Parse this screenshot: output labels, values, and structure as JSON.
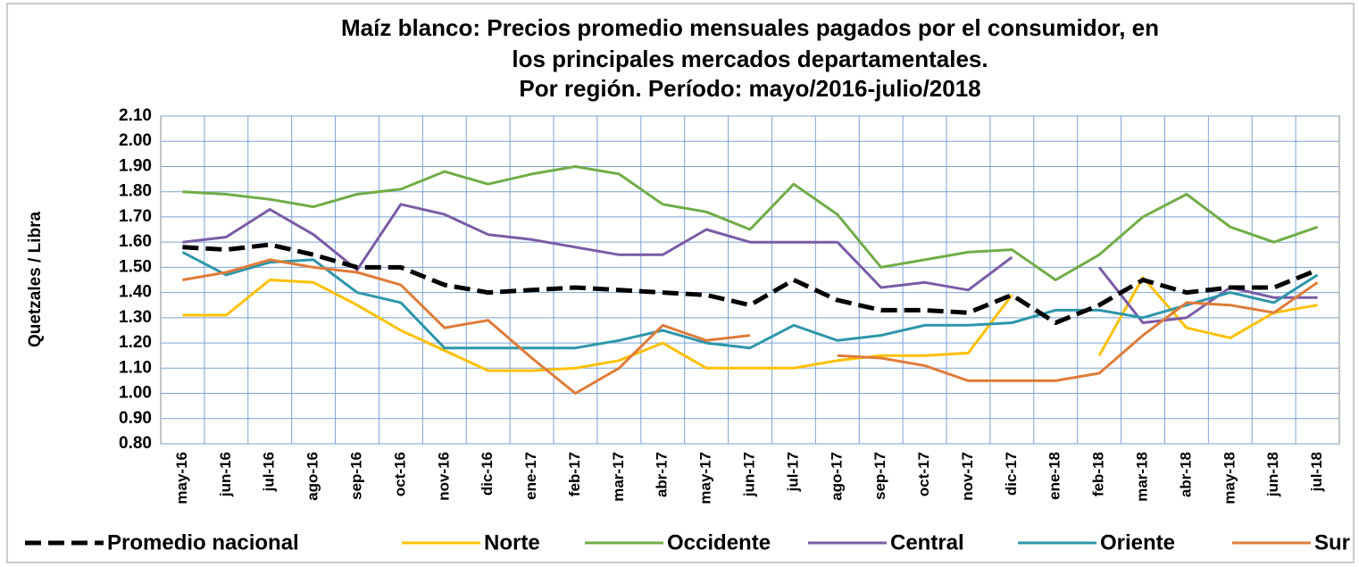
{
  "chart_data": {
    "type": "line",
    "title": [
      "Maíz blanco: Precios promedio mensuales pagados por el consumidor, en",
      "los principales mercados departamentales.",
      "Por región. Período: mayo/2016-julio/2018"
    ],
    "y_label": "Quetzales / Libra",
    "categories": [
      "may-16",
      "jun-16",
      "jul-16",
      "ago-16",
      "sep-16",
      "oct-16",
      "nov-16",
      "dic-16",
      "ene-17",
      "feb-17",
      "mar-17",
      "abr-17",
      "may-17",
      "jun-17",
      "jul-17",
      "ago-17",
      "sep-17",
      "oct-17",
      "nov-17",
      "dic-17",
      "ene-18",
      "feb-18",
      "mar-18",
      "abr-18",
      "may-18",
      "jun-18",
      "jul-18"
    ],
    "series": [
      {
        "name": "Promedio nacional",
        "color": "#000000",
        "dashed": true,
        "values": [
          1.58,
          1.57,
          1.59,
          1.55,
          1.5,
          1.5,
          1.43,
          1.4,
          1.41,
          1.42,
          1.41,
          1.4,
          1.39,
          1.35,
          1.45,
          1.37,
          1.33,
          1.33,
          1.32,
          1.39,
          1.28,
          1.35,
          1.45,
          1.4,
          1.42,
          1.42,
          1.49
        ]
      },
      {
        "name": "Norte",
        "color": "#ffc000",
        "values": [
          1.31,
          1.31,
          1.45,
          1.44,
          1.35,
          1.25,
          1.17,
          1.09,
          1.09,
          1.1,
          1.13,
          1.2,
          1.1,
          1.1,
          1.1,
          1.13,
          1.15,
          1.15,
          1.16,
          1.39,
          null,
          1.15,
          1.46,
          1.26,
          1.22,
          1.32,
          1.35
        ]
      },
      {
        "name": "Occidente",
        "color": "#70ad47",
        "values": [
          1.8,
          1.79,
          1.77,
          1.74,
          1.79,
          1.81,
          1.88,
          1.83,
          1.87,
          1.9,
          1.87,
          1.75,
          1.72,
          1.65,
          1.83,
          1.71,
          1.5,
          1.53,
          1.56,
          1.57,
          1.45,
          1.55,
          1.7,
          1.79,
          1.66,
          1.6,
          1.66
        ]
      },
      {
        "name": "Central",
        "color": "#7b5ba6",
        "values": [
          1.6,
          1.62,
          1.73,
          1.63,
          1.49,
          1.75,
          1.71,
          1.63,
          1.61,
          1.58,
          1.55,
          1.55,
          1.65,
          1.6,
          1.6,
          1.6,
          1.42,
          1.44,
          1.41,
          1.54,
          null,
          1.5,
          1.28,
          1.3,
          1.42,
          1.38,
          1.38
        ]
      },
      {
        "name": "Oriente",
        "color": "#2e96aa",
        "values": [
          1.56,
          1.47,
          1.52,
          1.53,
          1.4,
          1.36,
          1.18,
          1.18,
          1.18,
          1.18,
          1.21,
          1.25,
          1.2,
          1.18,
          1.27,
          1.21,
          1.23,
          1.27,
          1.27,
          1.28,
          1.33,
          1.33,
          1.3,
          1.35,
          1.4,
          1.36,
          1.47
        ]
      },
      {
        "name": "Sur",
        "color": "#e07b39",
        "values": [
          1.45,
          1.48,
          1.53,
          1.5,
          1.48,
          1.43,
          1.26,
          1.29,
          1.14,
          1.0,
          1.1,
          1.27,
          1.21,
          1.23,
          null,
          1.15,
          1.14,
          1.11,
          1.05,
          1.05,
          1.05,
          1.08,
          1.23,
          1.36,
          1.35,
          1.32,
          1.44
        ]
      }
    ],
    "ylim": [
      0.8,
      2.1
    ],
    "yticks": [
      {
        "value": 0.8,
        "label": "0.80"
      },
      {
        "value": 0.9,
        "label": "0.90"
      },
      {
        "value": 1,
        "label": "1.00"
      },
      {
        "value": 1.1,
        "label": "1.10"
      },
      {
        "value": 1.2,
        "label": "1.20"
      },
      {
        "value": 1.3,
        "label": "1.30"
      },
      {
        "value": 1.4,
        "label": "1.40"
      },
      {
        "value": 1.5,
        "label": "1.50"
      },
      {
        "value": 1.6,
        "label": "1.60"
      },
      {
        "value": 1.7,
        "label": "1.70"
      },
      {
        "value": 1.8,
        "label": "1.80"
      },
      {
        "value": 1.9,
        "label": "1.90"
      },
      {
        "value": 2,
        "label": "2.00"
      },
      {
        "value": 2.1,
        "label": "2.10"
      }
    ],
    "grid": true,
    "legend": "bottom"
  }
}
